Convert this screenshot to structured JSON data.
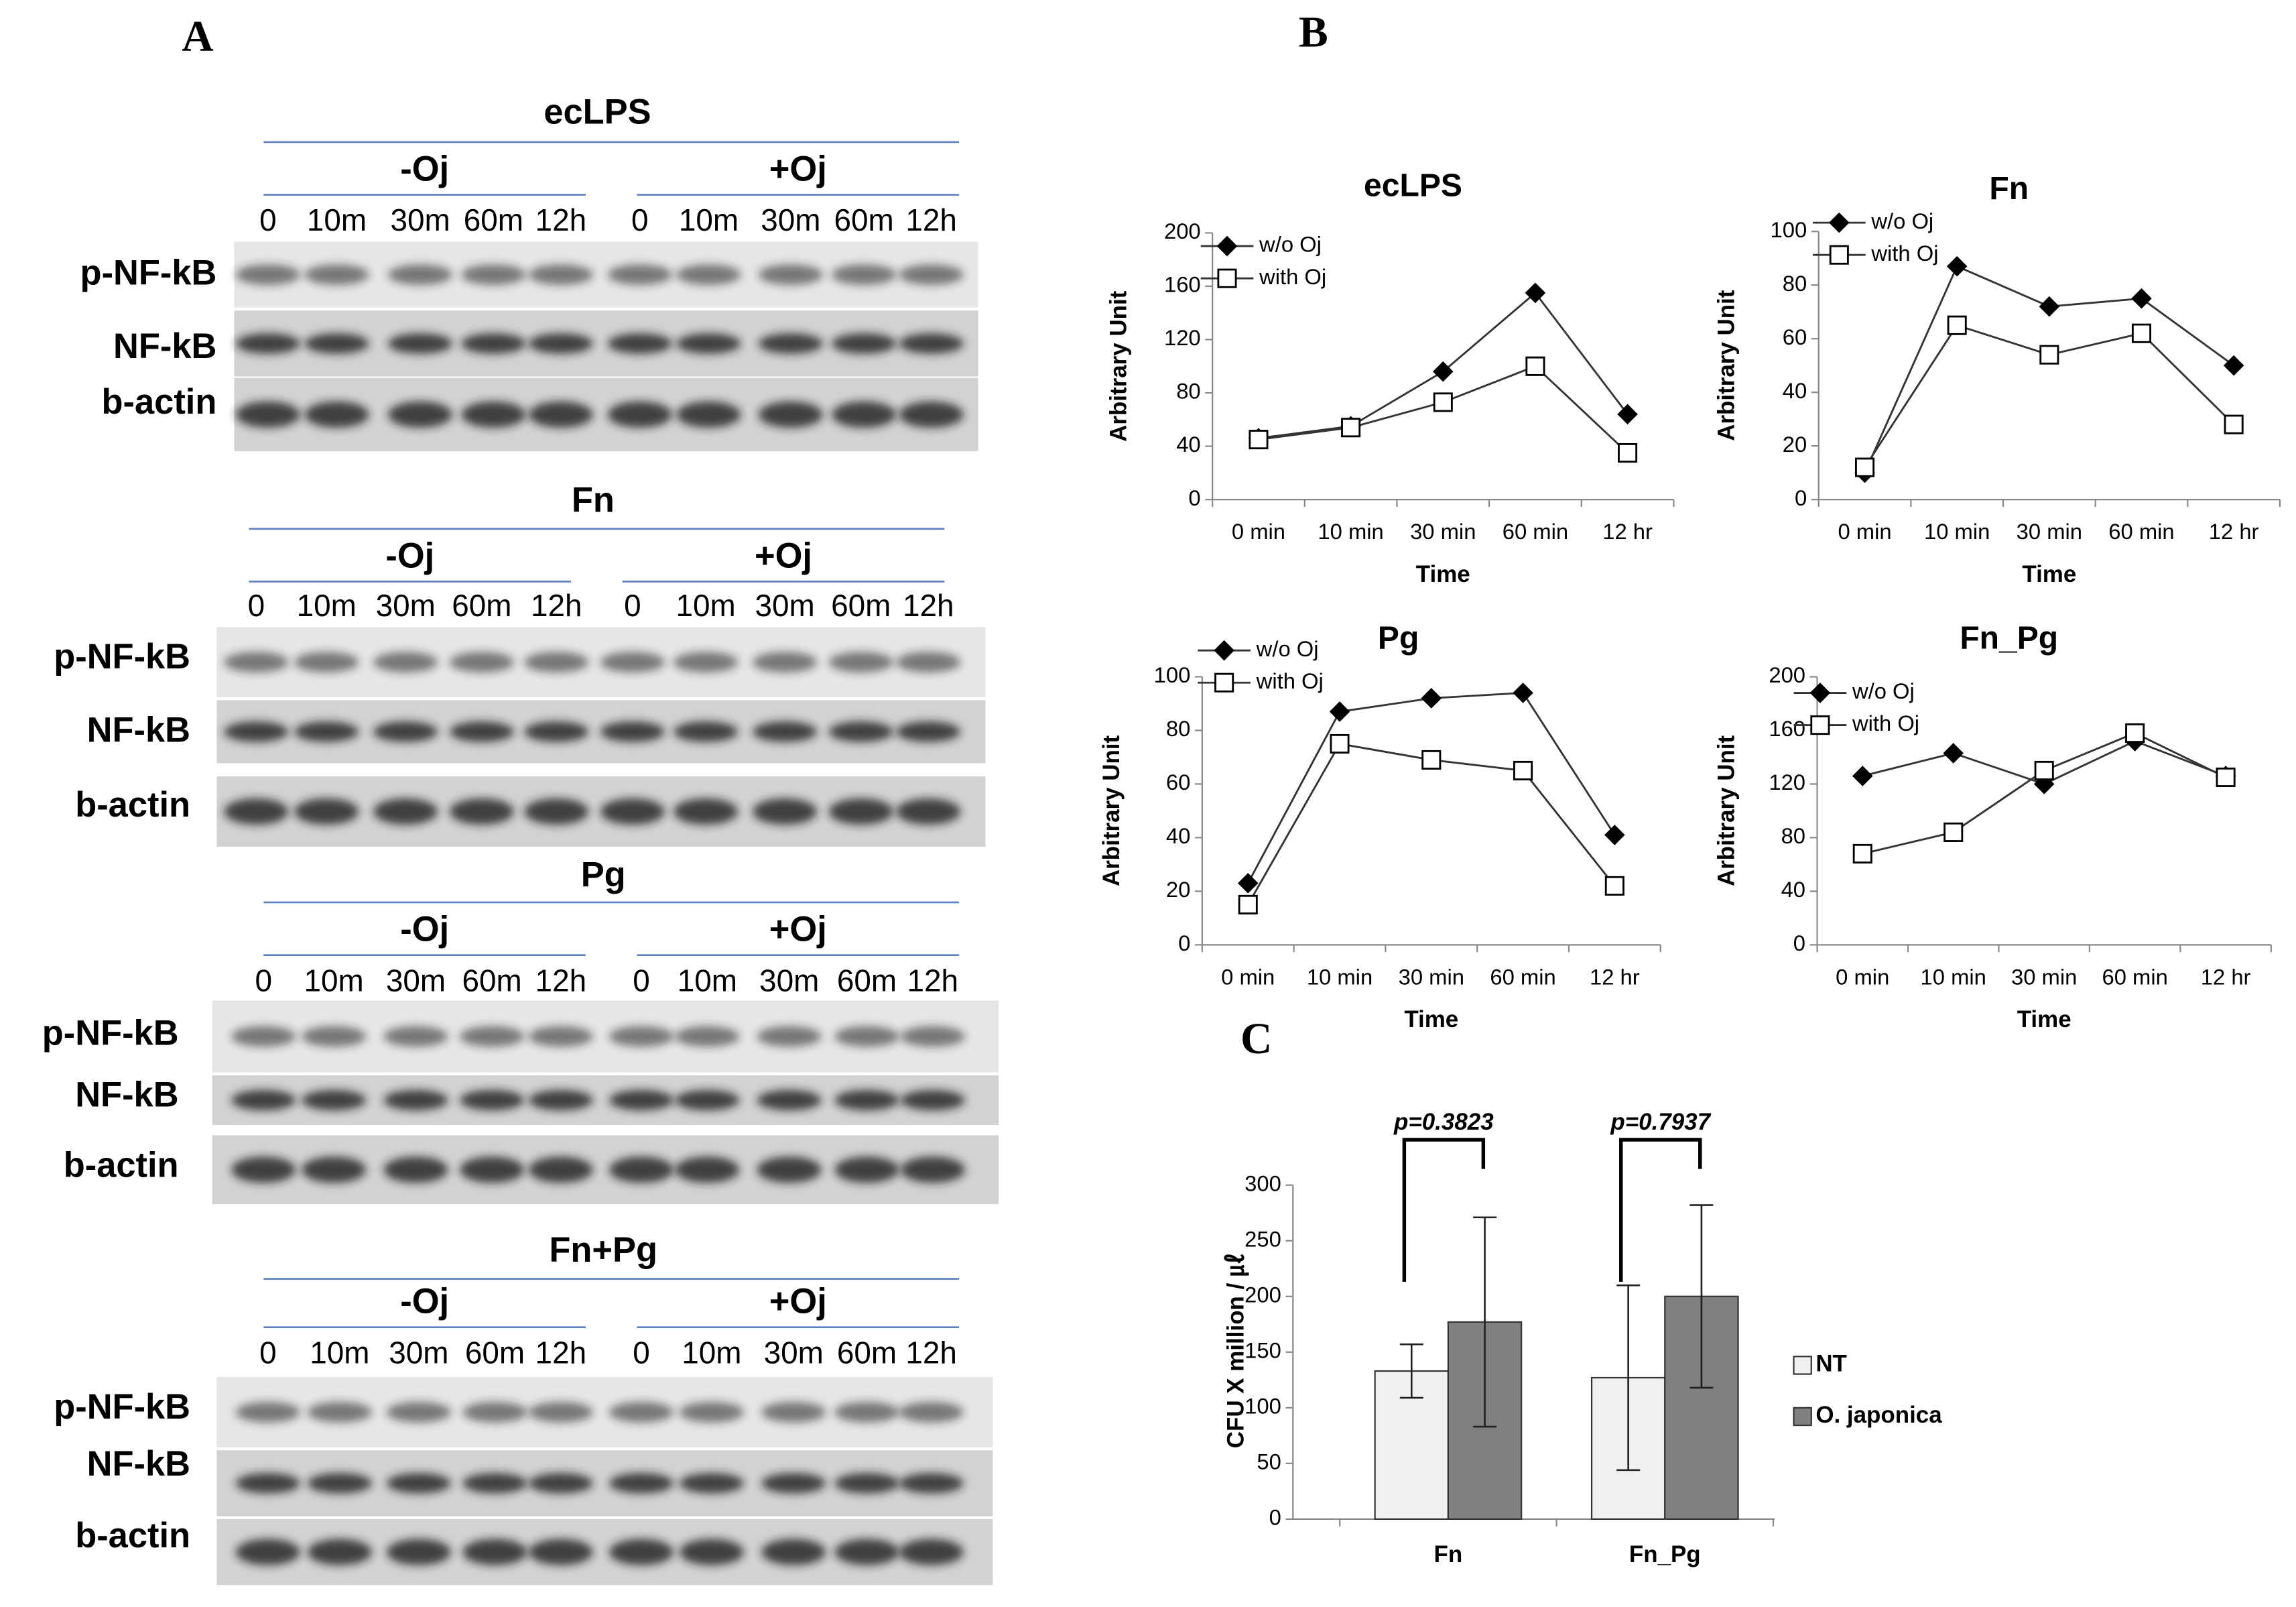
{
  "panel_labels": [
    "A",
    "B",
    "C"
  ],
  "blots": [
    {
      "title": "ecLPS",
      "groups": [
        {
          "label": "-Oj",
          "lanes": [
            "0",
            "10m",
            "30m",
            "60m",
            "12h"
          ]
        },
        {
          "label": "+Oj",
          "lanes": [
            "0",
            "10m",
            "30m",
            "60m",
            "12h"
          ]
        }
      ],
      "rows": [
        "p-NF-kB",
        "NF-kB",
        "b-actin"
      ]
    },
    {
      "title": "Fn",
      "groups": [
        {
          "label": "-Oj",
          "lanes": [
            "0",
            "10m",
            "30m",
            "60m",
            "12h"
          ]
        },
        {
          "label": "+Oj",
          "lanes": [
            "0",
            "10m",
            "30m",
            "60m",
            "12h"
          ]
        }
      ],
      "rows": [
        "p-NF-kB",
        "NF-kB",
        "b-actin"
      ]
    },
    {
      "title": "Pg",
      "groups": [
        {
          "label": "-Oj",
          "lanes": [
            "0",
            "10m",
            "30m",
            "60m",
            "12h"
          ]
        },
        {
          "label": "+Oj",
          "lanes": [
            "0",
            "10m",
            "30m",
            "60m",
            "12h"
          ]
        }
      ],
      "rows": [
        "p-NF-kB",
        "NF-kB",
        "b-actin"
      ]
    },
    {
      "title": "Fn+Pg",
      "groups": [
        {
          "label": "-Oj",
          "lanes": [
            "0",
            "10m",
            "30m",
            "60m",
            "12h"
          ]
        },
        {
          "label": "+Oj",
          "lanes": [
            "0",
            "10m",
            "30m",
            "60m",
            "12h"
          ]
        }
      ],
      "rows": [
        "p-NF-kB",
        "NF-kB",
        "b-actin"
      ]
    }
  ],
  "chart_data": [
    {
      "type": "line",
      "title": "ecLPS",
      "xlabel": "Time",
      "ylabel": "Arbitrary Unit",
      "categories": [
        "0 min",
        "10 min",
        "30 min",
        "60  min",
        "12 hr"
      ],
      "series": [
        {
          "name": "w/o Oj",
          "color": "#000000",
          "marker": "diamond",
          "values": [
            46,
            55,
            96,
            155,
            64
          ]
        },
        {
          "name": "with Oj",
          "color": "#000000",
          "marker": "square",
          "values": [
            45,
            54,
            73,
            100,
            35
          ]
        }
      ],
      "ylim": [
        0,
        200
      ],
      "yticks": [
        0,
        40,
        80,
        120,
        160,
        200
      ]
    },
    {
      "type": "line",
      "title": "Fn",
      "xlabel": "Time",
      "ylabel": "Arbitrary Unit",
      "categories": [
        "0 min",
        "10 min",
        "30 min",
        "60  min",
        "12 hr"
      ],
      "series": [
        {
          "name": "w/o Oj",
          "color": "#000000",
          "marker": "diamond",
          "values": [
            10,
            87,
            72,
            75,
            50
          ]
        },
        {
          "name": "with Oj",
          "color": "#000000",
          "marker": "square",
          "values": [
            12,
            65,
            54,
            62,
            28
          ]
        }
      ],
      "ylim": [
        0,
        100
      ],
      "yticks": [
        0,
        20,
        40,
        60,
        80,
        100
      ]
    },
    {
      "type": "line",
      "title": "Pg",
      "xlabel": "Time",
      "ylabel": "Arbitrary Unit",
      "categories": [
        "0 min",
        "10 min",
        "30 min",
        "60  min",
        "12 hr"
      ],
      "series": [
        {
          "name": "w/o Oj",
          "color": "#000000",
          "marker": "diamond",
          "values": [
            23,
            87,
            92,
            94,
            41
          ]
        },
        {
          "name": "with Oj",
          "color": "#000000",
          "marker": "square",
          "values": [
            15,
            75,
            69,
            65,
            22
          ]
        }
      ],
      "ylim": [
        0,
        100
      ],
      "yticks": [
        0,
        20,
        40,
        60,
        80,
        100
      ]
    },
    {
      "type": "line",
      "title": "Fn_Pg",
      "xlabel": "Time",
      "ylabel": "Arbitrary Unit",
      "categories": [
        "0 min",
        "10 min",
        "30 min",
        "60  min",
        "12 hr"
      ],
      "series": [
        {
          "name": "w/o Oj",
          "color": "#000000",
          "marker": "diamond",
          "values": [
            126,
            143,
            120,
            152,
            126
          ]
        },
        {
          "name": "with Oj",
          "color": "#000000",
          "marker": "square",
          "values": [
            68,
            84,
            130,
            158,
            125
          ]
        }
      ],
      "ylim": [
        0,
        200
      ],
      "yticks": [
        0,
        40,
        80,
        120,
        160,
        200
      ]
    },
    {
      "type": "bar",
      "ylabel": "CFU X million / ㎕",
      "categories": [
        "Fn",
        "Fn_Pg"
      ],
      "series": [
        {
          "name": "NT",
          "color": "#f0f0f0",
          "values": [
            133,
            127
          ],
          "errors": [
            24,
            83
          ]
        },
        {
          "name": "O. japonica",
          "color": "#808080",
          "values": [
            177,
            200
          ],
          "errors": [
            94,
            82
          ]
        }
      ],
      "annotations": [
        "p=0.3823",
        "p=0.7937"
      ],
      "ylim": [
        0,
        300
      ],
      "yticks": [
        0,
        50,
        100,
        150,
        200,
        250,
        300
      ]
    }
  ]
}
